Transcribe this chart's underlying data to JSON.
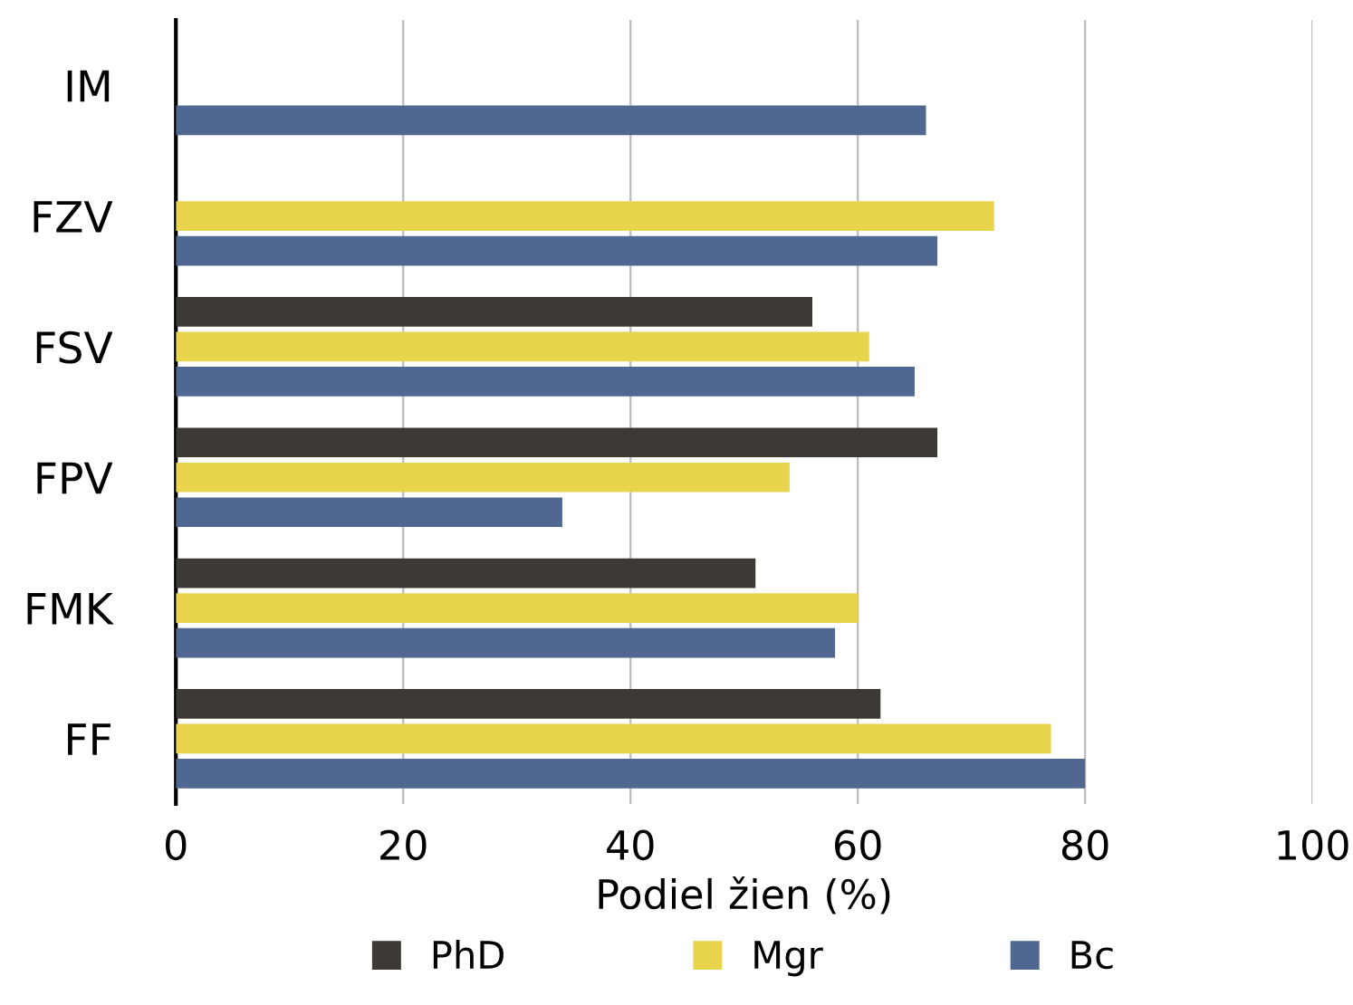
{
  "chart_data": {
    "type": "bar",
    "orientation": "horizontal",
    "xlabel": "Podiel žien (%)",
    "categories": [
      "IM",
      "FZV",
      "FSV",
      "FPV",
      "FMK",
      "FF"
    ],
    "series": [
      {
        "name": "PhD",
        "color": "#3d3a35",
        "values": [
          null,
          null,
          56,
          67,
          51,
          62
        ]
      },
      {
        "name": "Mgr",
        "color": "#e8d44d",
        "values": [
          null,
          72,
          61,
          54,
          60,
          77
        ]
      },
      {
        "name": "Bc",
        "color": "#4f6791",
        "values": [
          66,
          67,
          65,
          34,
          58,
          80
        ]
      }
    ],
    "xlim": [
      0,
      100
    ],
    "xticks": [
      0,
      20,
      40,
      60,
      80,
      100
    ],
    "grid": "x",
    "legend": "bottom"
  }
}
